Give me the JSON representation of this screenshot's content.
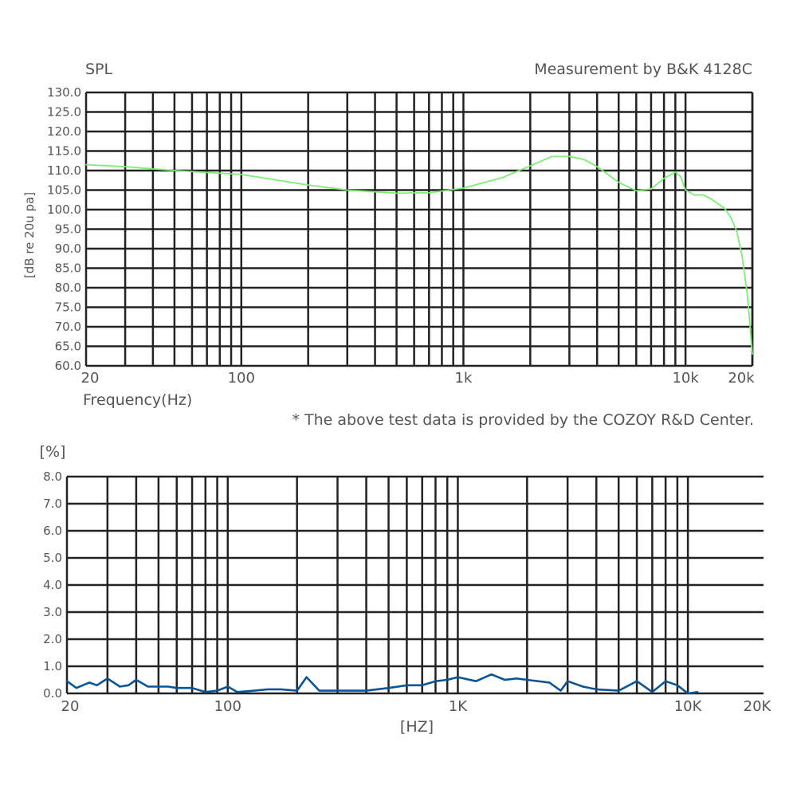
{
  "chart_data": [
    {
      "type": "line",
      "title": "SPL",
      "subtitle": "Measurement by B&K 4128C",
      "xlabel": "Frequency(Hz)",
      "ylabel": "[dB re 20u pa]",
      "note": "* The above test data is provided by the COZOY R&D Center.",
      "xscale": "log",
      "xlim": [
        20,
        20000
      ],
      "ylim": [
        60,
        130
      ],
      "grid": true,
      "x_tick_labels": [
        {
          "value": 20,
          "label": "20"
        },
        {
          "value": 100,
          "label": "100"
        },
        {
          "value": 1000,
          "label": "1k"
        },
        {
          "value": 10000,
          "label": "10k"
        },
        {
          "value": 20000,
          "label": "20k"
        }
      ],
      "y_tick_labels": [
        "60.0",
        "65.0",
        "70.0",
        "75.0",
        "80.0",
        "85.0",
        "90.0",
        "95.0",
        "100.0",
        "105.0",
        "110.0",
        "115.0",
        "120.0",
        "125.0",
        "130.0"
      ],
      "series": [
        {
          "color": "#7cee74",
          "x": [
            20,
            30,
            50,
            100,
            200,
            300,
            500,
            700,
            1000,
            1500,
            2000,
            2500,
            3000,
            3500,
            4000,
            5000,
            6000,
            7000,
            8000,
            9000,
            9500,
            10000,
            11000,
            12000,
            13000,
            14000,
            15000,
            16000,
            17000,
            18000,
            19000,
            20000
          ],
          "y": [
            111.5,
            111,
            110,
            109,
            106.3,
            105,
            104.2,
            104.3,
            105.5,
            108.2,
            111.2,
            113.6,
            113.6,
            112.8,
            111,
            107,
            104.8,
            105.3,
            108,
            109.6,
            108.5,
            105,
            103.7,
            103.8,
            102.8,
            101.5,
            100.3,
            98,
            94.5,
            88,
            78,
            63
          ]
        }
      ]
    },
    {
      "type": "line",
      "ylabel": "[%]",
      "xlabel": "[HZ]",
      "xscale": "log",
      "xlim": [
        20,
        20000
      ],
      "ylim": [
        0,
        8
      ],
      "grid": true,
      "x_tick_labels": [
        {
          "value": 20,
          "label": "20"
        },
        {
          "value": 100,
          "label": "100"
        },
        {
          "value": 1000,
          "label": "1K"
        },
        {
          "value": 10000,
          "label": "10K"
        },
        {
          "value": 20000,
          "label": "20K"
        }
      ],
      "y_tick_labels": [
        "0.0",
        "1.0",
        "2.0",
        "3.0",
        "4.0",
        "5.0",
        "6.0",
        "7.0",
        "8.0"
      ],
      "series": [
        {
          "color": "#0b5595",
          "x": [
            20,
            22,
            25,
            27,
            30,
            34,
            37,
            40,
            45,
            50,
            55,
            60,
            70,
            80,
            90,
            100,
            110,
            130,
            150,
            170,
            200,
            220,
            250,
            300,
            400,
            500,
            600,
            700,
            800,
            900,
            1000,
            1200,
            1400,
            1600,
            1800,
            2000,
            2500,
            2800,
            3000,
            3500,
            4000,
            5000,
            6000,
            7000,
            8000,
            9000,
            10000,
            11000
          ],
          "y": [
            0.45,
            0.2,
            0.4,
            0.3,
            0.55,
            0.25,
            0.3,
            0.5,
            0.25,
            0.25,
            0.25,
            0.2,
            0.2,
            0.05,
            0.1,
            0.25,
            0.05,
            0.1,
            0.15,
            0.15,
            0.1,
            0.6,
            0.1,
            0.1,
            0.1,
            0.2,
            0.3,
            0.3,
            0.45,
            0.5,
            0.6,
            0.45,
            0.7,
            0.5,
            0.55,
            0.5,
            0.4,
            0.1,
            0.45,
            0.25,
            0.15,
            0.1,
            0.45,
            0.05,
            0.45,
            0.3,
            0.0,
            0.05
          ]
        }
      ]
    }
  ]
}
